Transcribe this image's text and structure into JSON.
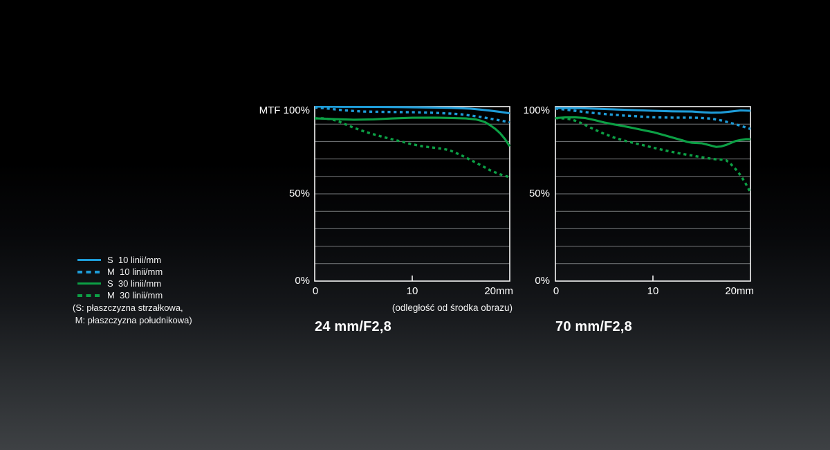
{
  "page": {
    "background_top": "#000000",
    "background_bottom": "#3e4144"
  },
  "colors": {
    "blue": "#1e9cd8",
    "green": "#0ca045",
    "grid": "#7a7d7f",
    "axis": "#f5f5f5",
    "text": "#ffffff"
  },
  "legend": {
    "items": [
      {
        "id": "s10",
        "label": "S  10 linii/mm",
        "color": "#1e9cd8",
        "dashed": false
      },
      {
        "id": "m10",
        "label": "M  10 linii/mm",
        "color": "#1e9cd8",
        "dashed": true
      },
      {
        "id": "s30",
        "label": "S  30 linii/mm",
        "color": "#0ca045",
        "dashed": false
      },
      {
        "id": "m30",
        "label": "M  30 linii/mm",
        "color": "#0ca045",
        "dashed": true
      }
    ],
    "footnote_line1": "(S: płaszczyzna strzałkowa,",
    "footnote_line2": " M: płaszczyzna południkowa)"
  },
  "chart_data": [
    {
      "type": "line",
      "title": "24 mm/F2,8",
      "y_top_label": "MTF 100%",
      "y_mid_label": "50%",
      "y_bottom_label": "0%",
      "x_tick_labels": [
        "0",
        "10",
        "20mm"
      ],
      "x_ticks": [
        0,
        10,
        20
      ],
      "xlim": [
        0,
        20
      ],
      "ylim": [
        0,
        100
      ],
      "grid_step": 10,
      "xlabel": "(odległość od środka obrazu)",
      "legend_position": "outside-left",
      "grid": "horizontal-only",
      "series": [
        {
          "name": "S 10 linii/mm",
          "color": "#1e9cd8",
          "dashed": false,
          "points": [
            [
              0,
              100
            ],
            [
              3,
              99.9
            ],
            [
              6,
              99.8
            ],
            [
              9,
              99.7
            ],
            [
              12,
              99.5
            ],
            [
              14,
              99.3
            ],
            [
              16,
              98.8
            ],
            [
              17,
              98.3
            ],
            [
              18,
              97.7
            ],
            [
              19,
              97
            ],
            [
              20,
              96.2
            ]
          ]
        },
        {
          "name": "M 10 linii/mm",
          "color": "#1e9cd8",
          "dashed": true,
          "points": [
            [
              0,
              99.5
            ],
            [
              1,
              99.1
            ],
            [
              2,
              98.5
            ],
            [
              3,
              97.9
            ],
            [
              4,
              97.5
            ],
            [
              5,
              97.2
            ],
            [
              7,
              97
            ],
            [
              10,
              96.8
            ],
            [
              12,
              96.5
            ],
            [
              14,
              96
            ],
            [
              15,
              95.6
            ],
            [
              16,
              94.9
            ],
            [
              17,
              94.1
            ],
            [
              18,
              93.1
            ],
            [
              19,
              92.1
            ],
            [
              20,
              91
            ]
          ]
        },
        {
          "name": "S 30 linii/mm",
          "color": "#0ca045",
          "dashed": false,
          "points": [
            [
              0,
              93.3
            ],
            [
              1,
              93.1
            ],
            [
              2,
              92.8
            ],
            [
              4,
              92.5
            ],
            [
              6,
              92.7
            ],
            [
              8,
              93.2
            ],
            [
              10,
              93.6
            ],
            [
              12,
              93.7
            ],
            [
              14,
              93.5
            ],
            [
              15.5,
              93.2
            ],
            [
              16.5,
              92.7
            ],
            [
              17,
              92
            ],
            [
              17.5,
              91
            ],
            [
              18,
              89.3
            ],
            [
              18.5,
              87.3
            ],
            [
              19,
              84.8
            ],
            [
              19.5,
              81.5
            ],
            [
              20,
              77.3
            ]
          ]
        },
        {
          "name": "M 30 linii/mm",
          "color": "#0ca045",
          "dashed": true,
          "points": [
            [
              0,
              93.3
            ],
            [
              0.8,
              93.3
            ],
            [
              1.5,
              92.9
            ],
            [
              2,
              92.3
            ],
            [
              2.5,
              91.4
            ],
            [
              3,
              90.2
            ],
            [
              4,
              87.9
            ],
            [
              5,
              85.9
            ],
            [
              6,
              84.2
            ],
            [
              7,
              82.6
            ],
            [
              8,
              81.2
            ],
            [
              9,
              79.8
            ],
            [
              10,
              78.4
            ],
            [
              11,
              77.3
            ],
            [
              12,
              76.6
            ],
            [
              13,
              75.9
            ],
            [
              13.5,
              75.4
            ],
            [
              14,
              74.6
            ],
            [
              15,
              72.2
            ],
            [
              16,
              69.4
            ],
            [
              17,
              66.5
            ],
            [
              18,
              63.5
            ],
            [
              19,
              61.2
            ],
            [
              20,
              59.5
            ]
          ]
        }
      ]
    },
    {
      "type": "line",
      "title": "70 mm/F2,8",
      "y_top_label": "100%",
      "y_mid_label": "50%",
      "y_bottom_label": "0%",
      "x_tick_labels": [
        "0",
        "10",
        "20mm"
      ],
      "x_ticks": [
        0,
        10,
        20
      ],
      "xlim": [
        0,
        20
      ],
      "ylim": [
        0,
        100
      ],
      "grid_step": 10,
      "xlabel": "",
      "legend_position": "outside-left",
      "grid": "horizontal-only",
      "series": [
        {
          "name": "S 10 linii/mm",
          "color": "#1e9cd8",
          "dashed": false,
          "points": [
            [
              0,
              99.2
            ],
            [
              3,
              99
            ],
            [
              5,
              98.6
            ],
            [
              8,
              98
            ],
            [
              10,
              97.6
            ],
            [
              12,
              97.3
            ],
            [
              14,
              97.2
            ],
            [
              15,
              96.8
            ],
            [
              16,
              96.5
            ],
            [
              17,
              96.6
            ],
            [
              18,
              97.2
            ],
            [
              19,
              97.8
            ],
            [
              20,
              97.6
            ]
          ]
        },
        {
          "name": "M 10 linii/mm",
          "color": "#1e9cd8",
          "dashed": true,
          "points": [
            [
              0,
              98.9
            ],
            [
              1,
              98.3
            ],
            [
              2,
              97.6
            ],
            [
              3,
              96.9
            ],
            [
              4,
              96.3
            ],
            [
              5,
              95.8
            ],
            [
              6,
              95.3
            ],
            [
              7,
              94.9
            ],
            [
              8,
              94.6
            ],
            [
              9,
              94.2
            ],
            [
              10,
              93.9
            ],
            [
              12,
              93.7
            ],
            [
              14,
              93.7
            ],
            [
              15,
              93.5
            ],
            [
              16,
              93.1
            ],
            [
              17,
              92.1
            ],
            [
              18,
              90.6
            ],
            [
              19,
              89
            ],
            [
              20,
              87.2
            ]
          ]
        },
        {
          "name": "S 30 linii/mm",
          "color": "#0ca045",
          "dashed": false,
          "points": [
            [
              0,
              93.4
            ],
            [
              1,
              93.8
            ],
            [
              2,
              93.9
            ],
            [
              3,
              93.5
            ],
            [
              4,
              92.3
            ],
            [
              5,
              90.9
            ],
            [
              6,
              89.8
            ],
            [
              7,
              88.8
            ],
            [
              8,
              87.7
            ],
            [
              9,
              86.5
            ],
            [
              10,
              85.4
            ],
            [
              11,
              83.9
            ],
            [
              12,
              82.3
            ],
            [
              13,
              80.7
            ],
            [
              13.5,
              79.8
            ],
            [
              14,
              79.3
            ],
            [
              15,
              79
            ],
            [
              15.7,
              78
            ],
            [
              16.5,
              76.9
            ],
            [
              17,
              77.2
            ],
            [
              17.5,
              78
            ],
            [
              18,
              79.2
            ],
            [
              18.5,
              80.3
            ],
            [
              19,
              80.9
            ],
            [
              19.5,
              81.3
            ],
            [
              20,
              81.3
            ]
          ]
        },
        {
          "name": "M 30 linii/mm",
          "color": "#0ca045",
          "dashed": true,
          "points": [
            [
              0,
              93.4
            ],
            [
              1,
              93.2
            ],
            [
              1.6,
              92.7
            ],
            [
              2,
              92
            ],
            [
              2.5,
              90.9
            ],
            [
              3,
              89.6
            ],
            [
              3.5,
              88.2
            ],
            [
              4,
              86.9
            ],
            [
              5,
              84.4
            ],
            [
              6,
              82.3
            ],
            [
              7,
              80.6
            ],
            [
              8,
              79.2
            ],
            [
              9,
              77.9
            ],
            [
              10,
              76.5
            ],
            [
              11,
              75.2
            ],
            [
              12,
              74
            ],
            [
              13,
              72.9
            ],
            [
              14,
              72
            ],
            [
              15,
              71
            ],
            [
              16,
              70.1
            ],
            [
              16.5,
              69.8
            ],
            [
              17,
              69.7
            ],
            [
              17.5,
              69.3
            ],
            [
              18,
              67
            ],
            [
              18.5,
              64
            ],
            [
              19,
              60.5
            ],
            [
              19.5,
              56
            ],
            [
              20,
              50.8
            ]
          ]
        }
      ]
    }
  ]
}
